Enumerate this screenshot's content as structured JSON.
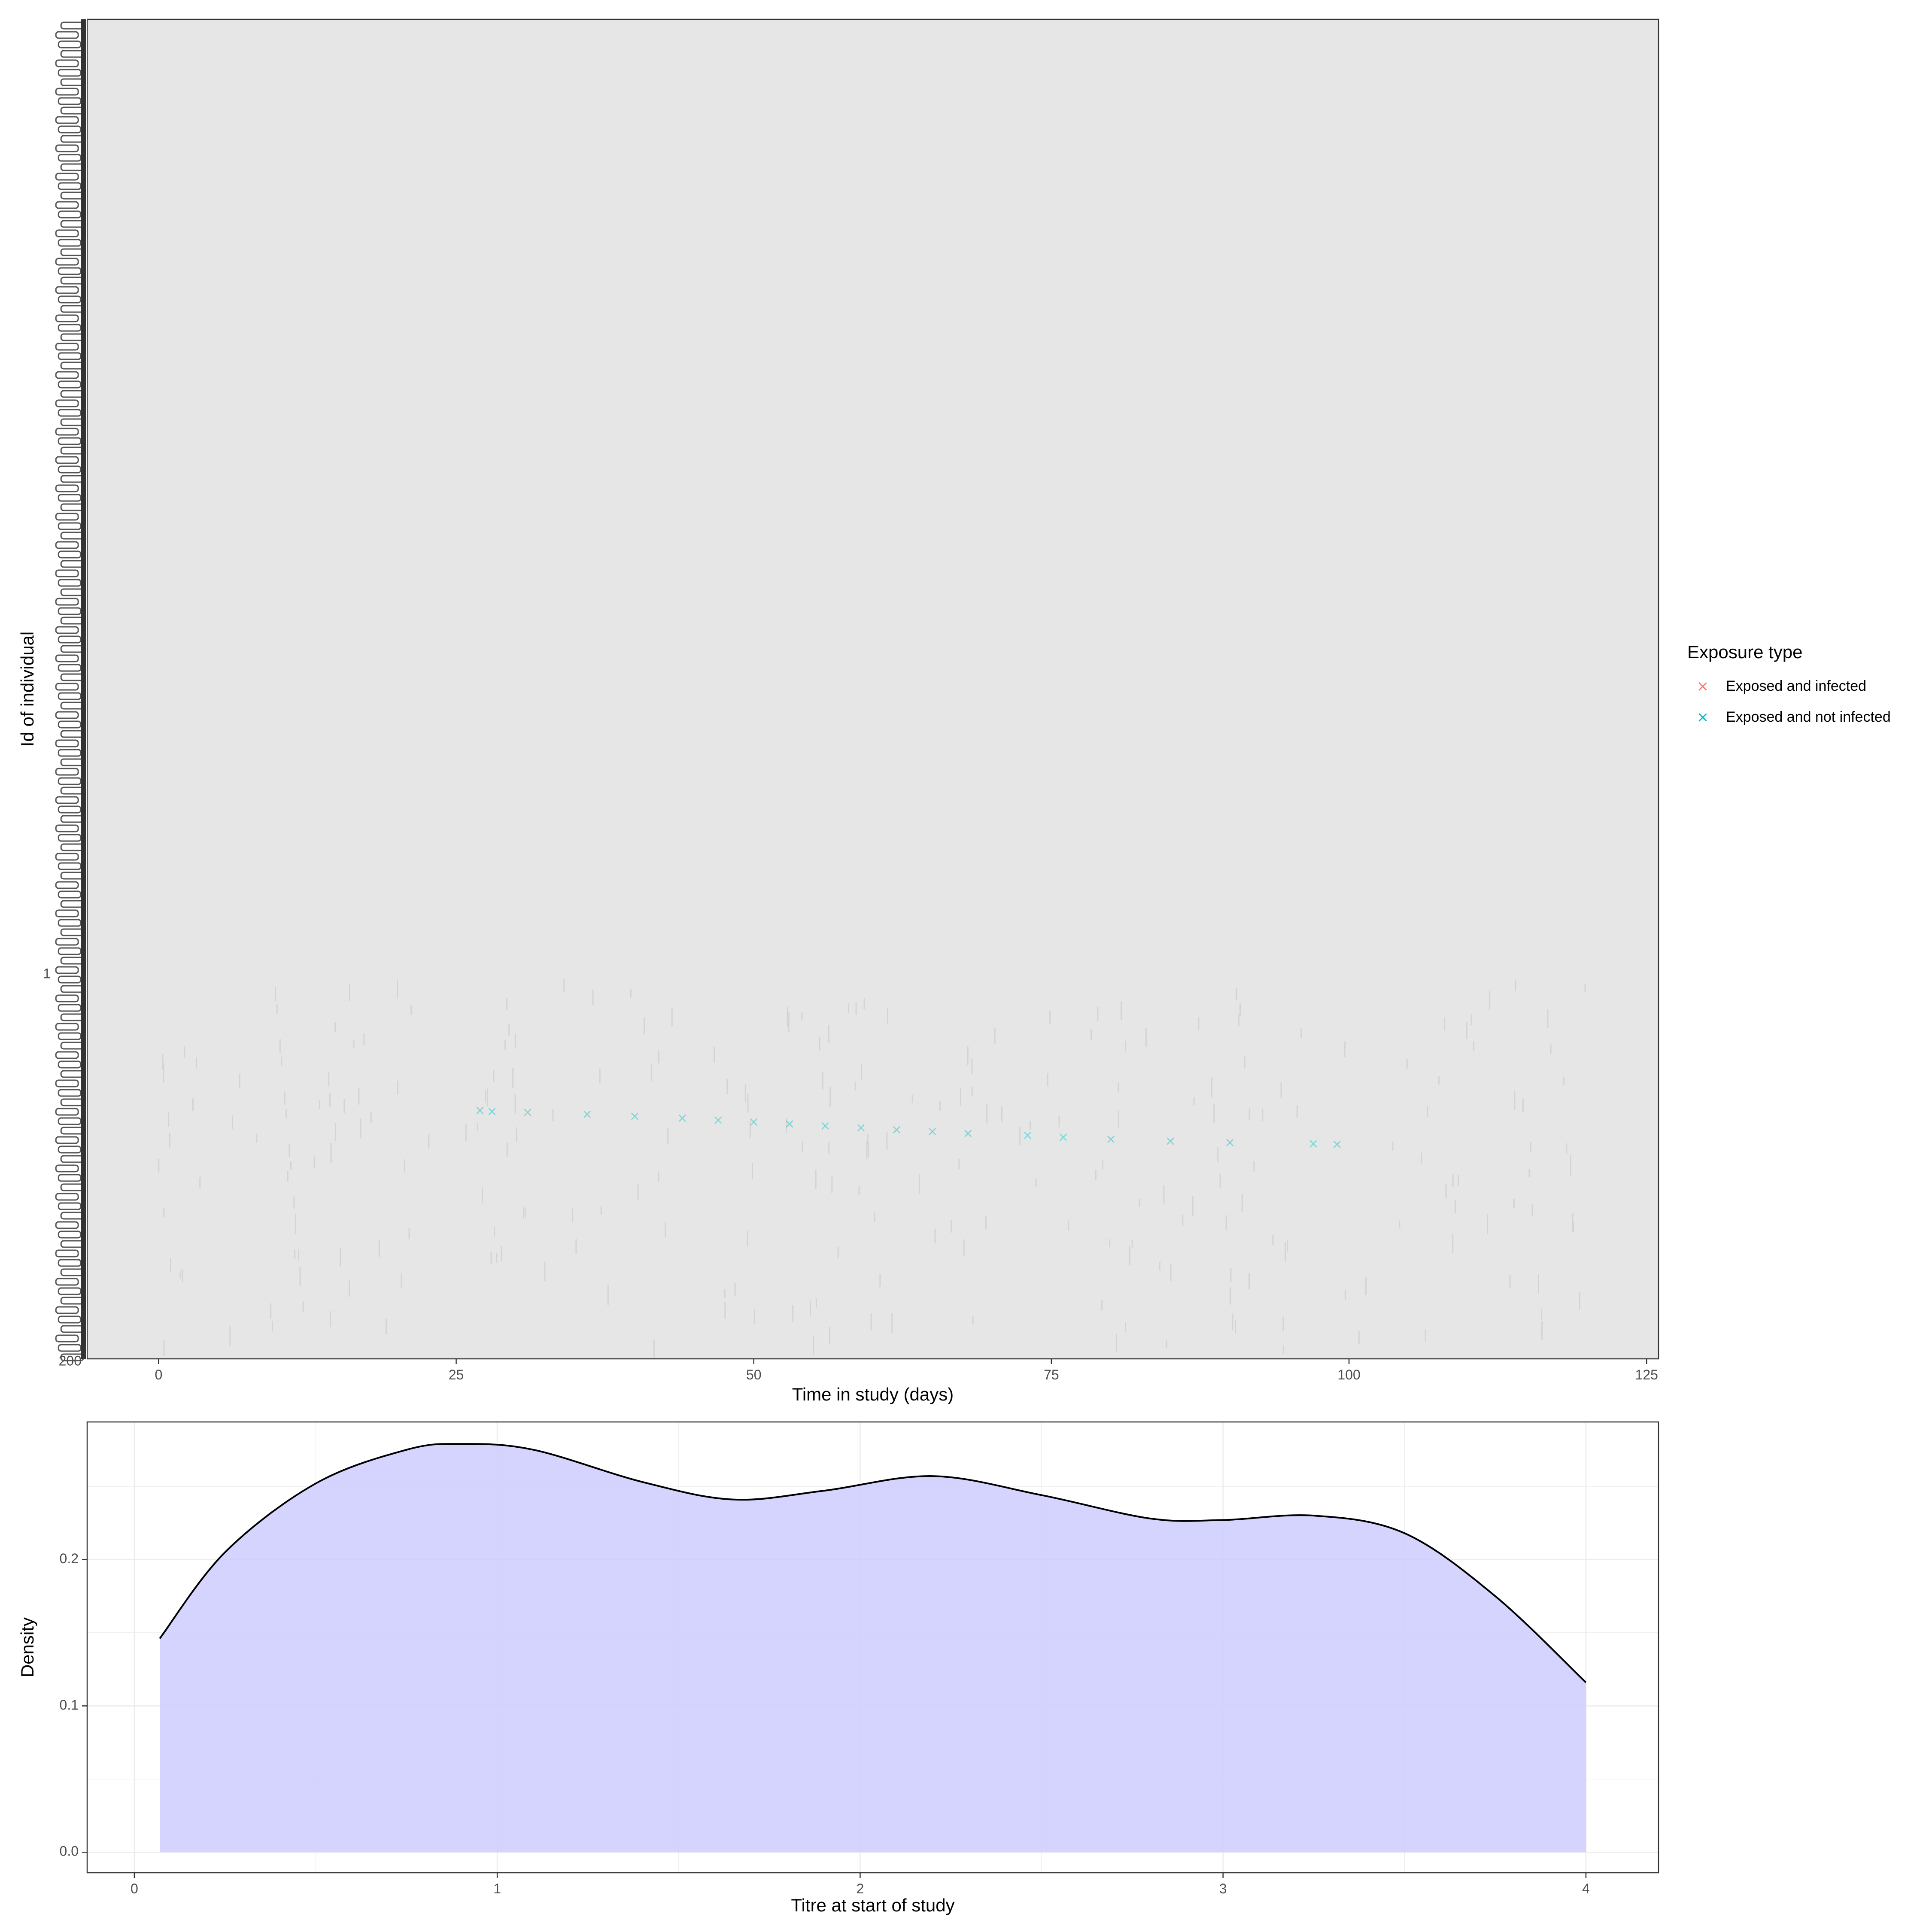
{
  "chart_data": [
    {
      "type": "scatter",
      "xlabel": "Time in study (days)",
      "ylabel": "Id of individual",
      "xlim": [
        -6,
        126
      ],
      "x_ticks": [
        0,
        25,
        50,
        75,
        100,
        125
      ],
      "ylim": [
        1,
        200
      ],
      "y_tick_labels_visible": [
        "1",
        "200"
      ],
      "y_tick_labels_overplotted": true,
      "grid": false,
      "panel_background": "#e6e6e6",
      "legend": {
        "title": "Exposure type",
        "placement": "right",
        "items": [
          {
            "label": "Exposed and infected",
            "color": "#f8766d",
            "marker": "×"
          },
          {
            "label": "Exposed and not infected",
            "color": "#00bfc4",
            "marker": "×"
          }
        ]
      },
      "series": [
        {
          "name": "Exposed and not infected",
          "color": "#00bfc4",
          "points": [
            [
              27,
              72
            ],
            [
              28,
              72.5
            ],
            [
              31,
              73
            ],
            [
              36,
              74
            ],
            [
              40,
              75
            ],
            [
              44,
              76
            ],
            [
              47,
              77
            ],
            [
              50,
              78
            ],
            [
              53,
              79
            ],
            [
              56,
              80
            ],
            [
              59,
              81
            ],
            [
              62,
              82
            ],
            [
              65,
              83
            ],
            [
              68,
              84
            ],
            [
              73,
              85
            ],
            [
              76,
              86
            ],
            [
              80,
              87
            ],
            [
              85,
              88
            ],
            [
              90,
              88.8
            ],
            [
              97,
              89.3
            ],
            [
              99,
              89.6
            ]
          ]
        }
      ]
    },
    {
      "type": "area",
      "xlabel": "Titre at start of study",
      "ylabel": "Density",
      "xlim": [
        -0.13,
        4.2
      ],
      "ylim": [
        -0.014,
        0.294
      ],
      "x_ticks": [
        0,
        1,
        2,
        3,
        4
      ],
      "y_ticks": [
        0.0,
        0.1,
        0.2
      ],
      "y_tick_labels": [
        "0.0",
        "0.1",
        "0.2"
      ],
      "grid": true,
      "fill_color": "#ccccff",
      "line_color": "#000000",
      "x": [
        0.07,
        0.25,
        0.5,
        0.75,
        0.9,
        1.1,
        1.4,
        1.65,
        1.9,
        2.2,
        2.5,
        2.8,
        3.0,
        3.25,
        3.5,
        3.75,
        4.0
      ],
      "y": [
        0.146,
        0.205,
        0.252,
        0.275,
        0.279,
        0.275,
        0.253,
        0.241,
        0.247,
        0.257,
        0.244,
        0.228,
        0.227,
        0.23,
        0.218,
        0.175,
        0.116
      ]
    }
  ]
}
